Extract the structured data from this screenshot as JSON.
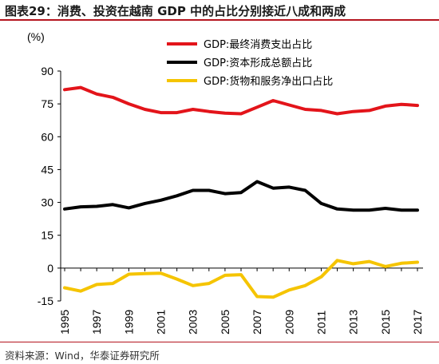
{
  "header": {
    "title": "图表29：消费、投资在越南 GDP 中的占比分别接近八成和两成"
  },
  "footer": {
    "source": "资料来源：Wind，华泰证券研究所"
  },
  "colors": {
    "accent": "#b4141e"
  },
  "chart_data": {
    "type": "line",
    "ylabel": "(%)",
    "ylim": [
      -15,
      90
    ],
    "yticks": [
      "90",
      "75",
      "60",
      "45",
      "30",
      "15",
      "0",
      "-15"
    ],
    "x": [
      1995,
      1996,
      1997,
      1998,
      1999,
      2000,
      2001,
      2002,
      2003,
      2004,
      2005,
      2006,
      2007,
      2008,
      2009,
      2010,
      2011,
      2012,
      2013,
      2014,
      2015,
      2016,
      2017
    ],
    "xticks": [
      "1995",
      "1997",
      "1999",
      "2001",
      "2003",
      "2005",
      "2007",
      "2009",
      "2011",
      "2013",
      "2015",
      "2017"
    ],
    "grid": false,
    "legend_position": "top-right",
    "series": [
      {
        "name": "GDP:最终消费支出占比",
        "color": "#e3141a",
        "values": [
          81.5,
          82.5,
          79.5,
          78.0,
          75.0,
          72.5,
          71.0,
          71.0,
          72.5,
          71.5,
          70.8,
          70.5,
          73.5,
          76.5,
          74.5,
          72.5,
          72.0,
          70.5,
          71.5,
          72.0,
          74.0,
          74.8,
          74.3
        ]
      },
      {
        "name": "GDP:资本形成总额占比",
        "color": "#000000",
        "values": [
          27.0,
          28.0,
          28.2,
          29.0,
          27.5,
          29.5,
          31.0,
          33.0,
          35.5,
          35.5,
          34.0,
          34.5,
          39.5,
          36.5,
          37.0,
          35.5,
          29.5,
          27.0,
          26.5,
          26.5,
          27.3,
          26.5,
          26.5
        ]
      },
      {
        "name": "GDP:货物和服务净出口占比",
        "color": "#f5c400",
        "values": [
          -9.0,
          -10.5,
          -7.5,
          -7.0,
          -2.8,
          -2.5,
          -2.3,
          -5.0,
          -8.0,
          -7.0,
          -3.3,
          -3.0,
          -13.0,
          -13.3,
          -10.0,
          -8.0,
          -4.0,
          3.5,
          2.0,
          3.0,
          0.7,
          2.2,
          2.7
        ]
      }
    ]
  }
}
